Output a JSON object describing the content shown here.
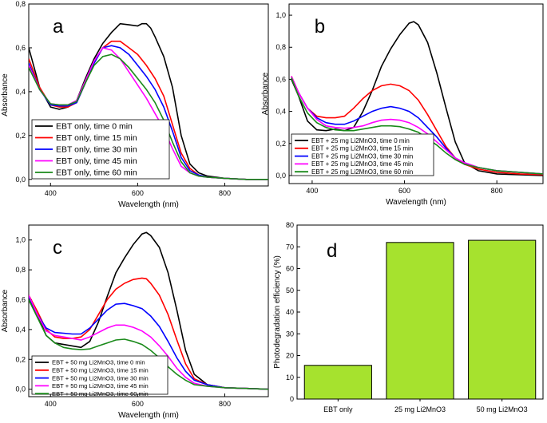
{
  "chart_data": [
    {
      "id": "a",
      "type": "line",
      "panel_label": "a",
      "xlabel": "Wavelength (nm)",
      "ylabel": "Absorbance",
      "xlim": [
        350,
        900
      ],
      "ylim": [
        -0.03,
        0.8
      ],
      "xticks": [
        400,
        600,
        800
      ],
      "xtick_labels": [
        "400",
        "600",
        "800"
      ],
      "yticks": [
        0,
        0.2,
        0.4,
        0.6,
        0.8
      ],
      "ytick_labels": [
        "0,0",
        "0,2",
        "0,4",
        "0,6",
        "0,8"
      ],
      "legend_position": "bottom-left",
      "series": [
        {
          "name": "EBT only, time 0 min",
          "color": "#000000",
          "x": [
            350,
            375,
            400,
            420,
            440,
            460,
            480,
            500,
            520,
            540,
            560,
            580,
            600,
            610,
            620,
            630,
            640,
            660,
            680,
            700,
            720,
            740,
            760,
            800,
            850,
            900
          ],
          "y": [
            0.6,
            0.42,
            0.33,
            0.32,
            0.33,
            0.36,
            0.46,
            0.55,
            0.62,
            0.67,
            0.71,
            0.705,
            0.7,
            0.71,
            0.71,
            0.69,
            0.65,
            0.56,
            0.42,
            0.2,
            0.07,
            0.03,
            0.015,
            0.005,
            0.0,
            0.0
          ]
        },
        {
          "name": "EBT only, time 15 min",
          "color": "#ff0000",
          "x": [
            350,
            375,
            400,
            420,
            440,
            460,
            480,
            500,
            520,
            540,
            560,
            580,
            600,
            620,
            640,
            660,
            680,
            700,
            720,
            740,
            760,
            800,
            850,
            900
          ],
          "y": [
            0.55,
            0.42,
            0.34,
            0.33,
            0.33,
            0.35,
            0.44,
            0.53,
            0.6,
            0.63,
            0.63,
            0.6,
            0.57,
            0.52,
            0.46,
            0.38,
            0.25,
            0.12,
            0.05,
            0.02,
            0.01,
            0.005,
            0.0,
            0.0
          ]
        },
        {
          "name": "EBT only, time 30 min",
          "color": "#0000ff",
          "x": [
            350,
            375,
            400,
            420,
            440,
            460,
            480,
            500,
            520,
            540,
            560,
            580,
            600,
            620,
            640,
            660,
            680,
            700,
            720,
            740,
            760,
            800,
            850,
            900
          ],
          "y": [
            0.53,
            0.41,
            0.34,
            0.335,
            0.335,
            0.35,
            0.44,
            0.53,
            0.6,
            0.61,
            0.6,
            0.57,
            0.52,
            0.47,
            0.41,
            0.33,
            0.22,
            0.1,
            0.04,
            0.02,
            0.01,
            0.005,
            0.0,
            0.0
          ]
        },
        {
          "name": "EBT only, time 45 min",
          "color": "#ff00ff",
          "x": [
            350,
            375,
            400,
            420,
            440,
            460,
            480,
            500,
            520,
            540,
            560,
            580,
            600,
            620,
            640,
            660,
            680,
            700,
            720,
            740,
            760,
            800,
            850,
            900
          ],
          "y": [
            0.52,
            0.41,
            0.345,
            0.34,
            0.34,
            0.36,
            0.45,
            0.54,
            0.6,
            0.59,
            0.55,
            0.49,
            0.43,
            0.37,
            0.3,
            0.23,
            0.14,
            0.06,
            0.03,
            0.015,
            0.01,
            0.005,
            0.0,
            0.0
          ]
        },
        {
          "name": "EBT only, time 60 min",
          "color": "#1a8a1a",
          "x": [
            350,
            375,
            400,
            420,
            440,
            460,
            480,
            500,
            520,
            540,
            560,
            580,
            600,
            620,
            640,
            660,
            680,
            700,
            720,
            740,
            760,
            800,
            850,
            900
          ],
          "y": [
            0.51,
            0.41,
            0.345,
            0.34,
            0.34,
            0.355,
            0.44,
            0.52,
            0.56,
            0.57,
            0.55,
            0.51,
            0.46,
            0.41,
            0.35,
            0.27,
            0.17,
            0.08,
            0.03,
            0.015,
            0.01,
            0.005,
            0.0,
            0.0
          ]
        }
      ]
    },
    {
      "id": "b",
      "type": "line",
      "panel_label": "b",
      "xlabel": "Wavelength (nm)",
      "ylabel": "Absorbance",
      "xlim": [
        350,
        900
      ],
      "ylim": [
        -0.05,
        1.07
      ],
      "xticks": [
        400,
        600,
        800
      ],
      "xtick_labels": [
        "400",
        "600",
        "800"
      ],
      "yticks": [
        0,
        0.2,
        0.4,
        0.6,
        0.8,
        1.0
      ],
      "ytick_labels": [
        "0,0",
        "0,2",
        "0,4",
        "0,6",
        "0,8",
        "1,0"
      ],
      "legend_position": "bottom-left",
      "series": [
        {
          "name": "EBT + 25 mg Li2MnO3, time 0 min",
          "color": "#000000",
          "x": [
            355,
            370,
            390,
            410,
            430,
            450,
            470,
            490,
            510,
            530,
            550,
            570,
            590,
            610,
            620,
            630,
            650,
            670,
            690,
            710,
            730,
            760,
            800,
            850,
            900
          ],
          "y": [
            0.6,
            0.5,
            0.34,
            0.285,
            0.28,
            0.29,
            0.28,
            0.3,
            0.4,
            0.53,
            0.68,
            0.79,
            0.88,
            0.95,
            0.96,
            0.94,
            0.83,
            0.64,
            0.42,
            0.21,
            0.08,
            0.03,
            0.01,
            0.005,
            0.0
          ]
        },
        {
          "name": "EBT + 25 mg Li2MnO3, time 15 min",
          "color": "#ff0000",
          "x": [
            355,
            370,
            390,
            410,
            430,
            450,
            470,
            490,
            510,
            530,
            550,
            570,
            590,
            610,
            630,
            650,
            670,
            690,
            710,
            730,
            760,
            800,
            850,
            900
          ],
          "y": [
            0.62,
            0.52,
            0.42,
            0.37,
            0.36,
            0.36,
            0.37,
            0.42,
            0.48,
            0.53,
            0.56,
            0.57,
            0.56,
            0.53,
            0.47,
            0.38,
            0.28,
            0.18,
            0.11,
            0.07,
            0.04,
            0.02,
            0.01,
            0.005
          ]
        },
        {
          "name": "EBT + 25 mg Li2MnO3, time 30 min",
          "color": "#0000ff",
          "x": [
            355,
            370,
            390,
            410,
            430,
            450,
            470,
            490,
            510,
            530,
            550,
            570,
            590,
            610,
            630,
            650,
            670,
            690,
            710,
            730,
            760,
            800,
            850,
            900
          ],
          "y": [
            0.61,
            0.52,
            0.42,
            0.36,
            0.33,
            0.32,
            0.32,
            0.34,
            0.37,
            0.4,
            0.42,
            0.43,
            0.42,
            0.4,
            0.36,
            0.3,
            0.24,
            0.17,
            0.11,
            0.08,
            0.05,
            0.03,
            0.02,
            0.01
          ]
        },
        {
          "name": "EBT + 25 mg Li2MnO3, time 45 min",
          "color": "#ff00ff",
          "x": [
            355,
            370,
            390,
            410,
            430,
            450,
            470,
            490,
            510,
            530,
            550,
            570,
            590,
            610,
            630,
            650,
            670,
            690,
            710,
            730,
            760,
            800,
            850,
            900
          ],
          "y": [
            0.62,
            0.52,
            0.42,
            0.35,
            0.31,
            0.3,
            0.295,
            0.3,
            0.31,
            0.33,
            0.345,
            0.35,
            0.345,
            0.33,
            0.3,
            0.26,
            0.21,
            0.16,
            0.11,
            0.08,
            0.05,
            0.03,
            0.02,
            0.01
          ]
        },
        {
          "name": "EBT + 25 mg Li2MnO3, time 60 min",
          "color": "#1a8a1a",
          "x": [
            355,
            370,
            390,
            410,
            430,
            450,
            470,
            490,
            510,
            530,
            550,
            570,
            590,
            610,
            630,
            650,
            670,
            690,
            710,
            730,
            760,
            800,
            850,
            900
          ],
          "y": [
            0.61,
            0.5,
            0.39,
            0.33,
            0.3,
            0.285,
            0.28,
            0.28,
            0.29,
            0.3,
            0.31,
            0.31,
            0.305,
            0.29,
            0.27,
            0.23,
            0.19,
            0.14,
            0.1,
            0.07,
            0.05,
            0.03,
            0.02,
            0.01
          ]
        }
      ]
    },
    {
      "id": "c",
      "type": "line",
      "panel_label": "c",
      "xlabel": "Wavelength (nm)",
      "ylabel": "Absorbance",
      "xlim": [
        350,
        900
      ],
      "ylim": [
        -0.05,
        1.1
      ],
      "xticks": [
        400,
        600,
        800
      ],
      "xtick_labels": [
        "400",
        "600",
        "800"
      ],
      "yticks": [
        0,
        0.2,
        0.4,
        0.6,
        0.8,
        1.0
      ],
      "ytick_labels": [
        "0,0",
        "0,2",
        "0,4",
        "0,6",
        "0,8",
        "1,0"
      ],
      "legend_position": "bottom-left",
      "series": [
        {
          "name": "EBT + 50 mg Li2MnO3, time 0 min",
          "color": "#000000",
          "x": [
            350,
            370,
            390,
            410,
            430,
            450,
            470,
            490,
            510,
            530,
            550,
            570,
            590,
            610,
            620,
            630,
            650,
            670,
            690,
            710,
            730,
            760,
            800,
            850,
            900
          ],
          "y": [
            0.6,
            0.5,
            0.36,
            0.31,
            0.3,
            0.29,
            0.28,
            0.32,
            0.45,
            0.62,
            0.78,
            0.88,
            0.97,
            1.04,
            1.05,
            1.03,
            0.95,
            0.78,
            0.53,
            0.26,
            0.1,
            0.03,
            0.01,
            0.005,
            0.0
          ]
        },
        {
          "name": "EBT + 50 mg Li2MnO3, time 15 min",
          "color": "#ff0000",
          "x": [
            350,
            370,
            390,
            410,
            430,
            450,
            470,
            490,
            510,
            530,
            550,
            570,
            590,
            610,
            620,
            630,
            650,
            670,
            690,
            710,
            730,
            760,
            800,
            850,
            900
          ],
          "y": [
            0.63,
            0.52,
            0.4,
            0.35,
            0.34,
            0.34,
            0.35,
            0.4,
            0.5,
            0.6,
            0.67,
            0.71,
            0.735,
            0.745,
            0.74,
            0.71,
            0.63,
            0.5,
            0.33,
            0.17,
            0.07,
            0.03,
            0.01,
            0.005,
            0.0
          ]
        },
        {
          "name": "EBT + 50 mg Li2MnO3, time 30 min",
          "color": "#0000ff",
          "x": [
            350,
            370,
            390,
            410,
            430,
            450,
            470,
            490,
            510,
            530,
            550,
            570,
            590,
            610,
            630,
            650,
            670,
            690,
            710,
            730,
            760,
            800,
            850,
            900
          ],
          "y": [
            0.62,
            0.5,
            0.41,
            0.38,
            0.375,
            0.37,
            0.37,
            0.41,
            0.47,
            0.53,
            0.57,
            0.575,
            0.56,
            0.54,
            0.49,
            0.42,
            0.32,
            0.21,
            0.12,
            0.06,
            0.03,
            0.01,
            0.005,
            0.0
          ]
        },
        {
          "name": "EBT + 50 mg Li2MnO3, time 45 min",
          "color": "#ff00ff",
          "x": [
            350,
            370,
            390,
            410,
            430,
            450,
            470,
            490,
            510,
            530,
            550,
            570,
            590,
            610,
            630,
            650,
            670,
            690,
            710,
            730,
            760,
            800,
            850,
            900
          ],
          "y": [
            0.63,
            0.5,
            0.39,
            0.36,
            0.35,
            0.34,
            0.33,
            0.35,
            0.38,
            0.41,
            0.43,
            0.43,
            0.415,
            0.39,
            0.35,
            0.29,
            0.22,
            0.14,
            0.08,
            0.04,
            0.02,
            0.01,
            0.005,
            0.0
          ]
        },
        {
          "name": "EBT + 50 mg Li2MnO3, time 60 min",
          "color": "#1a8a1a",
          "x": [
            350,
            370,
            390,
            410,
            430,
            450,
            470,
            490,
            510,
            530,
            550,
            570,
            590,
            610,
            630,
            650,
            670,
            690,
            710,
            730,
            760,
            800,
            850,
            900
          ],
          "y": [
            0.6,
            0.48,
            0.36,
            0.31,
            0.28,
            0.27,
            0.265,
            0.27,
            0.29,
            0.31,
            0.33,
            0.335,
            0.32,
            0.3,
            0.26,
            0.21,
            0.15,
            0.1,
            0.06,
            0.03,
            0.02,
            0.01,
            0.005,
            0.0
          ]
        }
      ]
    },
    {
      "id": "d",
      "type": "bar",
      "panel_label": "d",
      "xlabel": "",
      "ylabel": "Photodegradation efficiency (%)",
      "ylim": [
        0,
        80
      ],
      "yticks": [
        0,
        10,
        20,
        30,
        40,
        50,
        60,
        70,
        80
      ],
      "ytick_labels": [
        "0",
        "10",
        "20",
        "30",
        "40",
        "50",
        "60",
        "70",
        "80"
      ],
      "categories": [
        "EBT only",
        "25 mg Li2MnO3",
        "50 mg Li2MnO3"
      ],
      "values": [
        15.5,
        72,
        73
      ],
      "bar_color": "#a6e22e"
    }
  ]
}
